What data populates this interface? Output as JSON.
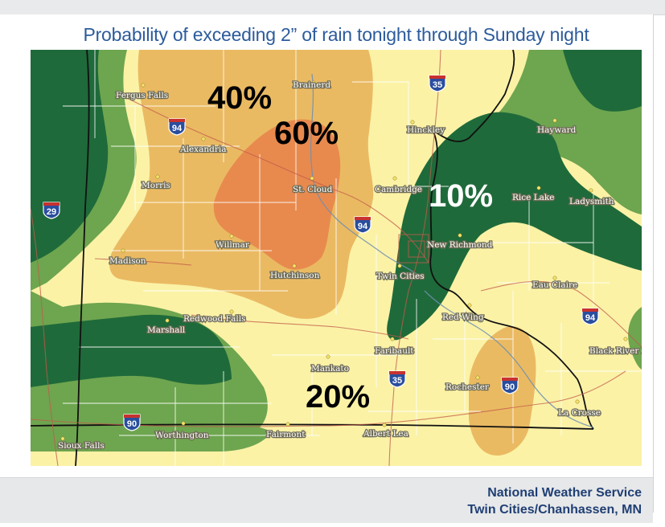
{
  "title": "Probability of exceeding 2” of rain tonight through Sunday night",
  "footer": {
    "line1": "National Weather Service",
    "line2": "Twin Cities/Chanhassen, MN"
  },
  "colors": {
    "title": "#2c5b9c",
    "footer_text": "#1f3f73",
    "prob_0_10": "#1f6a3a",
    "prob_10_20": "#6ea54f",
    "prob_20_40": "#fbf2a6",
    "prob_40_60": "#eaba62",
    "prob_60_plus": "#e88a4e"
  },
  "probability_labels": [
    {
      "id": "p40",
      "text": "40%",
      "color": "#000000"
    },
    {
      "id": "p60",
      "text": "60%",
      "color": "#000000"
    },
    {
      "id": "p10",
      "text": "10%",
      "color": "#ffffff"
    },
    {
      "id": "p20",
      "text": "20%",
      "color": "#000000"
    }
  ],
  "cities": [
    "Fergus Falls",
    "Brainerd",
    "Alexandria",
    "Hinckley",
    "Hayward",
    "Morris",
    "St. Cloud",
    "Cambridge",
    "Rice Lake",
    "Ladysmith",
    "Willmar",
    "Madison",
    "New Richmond",
    "Hutchinson",
    "Twin Cities",
    "Eau Claire",
    "Marshall",
    "Redwood Falls",
    "Red Wing",
    "Faribault",
    "Black River Fa",
    "Mankato",
    "Rochester",
    "La Crosse",
    "Worthington",
    "Fairmont",
    "Albert Lea",
    "Sioux Falls"
  ],
  "interstates": [
    {
      "id": "i35_north",
      "number": "35"
    },
    {
      "id": "i94_west",
      "number": "94"
    },
    {
      "id": "i29",
      "number": "29"
    },
    {
      "id": "i94_center",
      "number": "94"
    },
    {
      "id": "i94_east",
      "number": "94"
    },
    {
      "id": "i35_south",
      "number": "35"
    },
    {
      "id": "i90_east",
      "number": "90"
    },
    {
      "id": "i90_west",
      "number": "90"
    }
  ]
}
